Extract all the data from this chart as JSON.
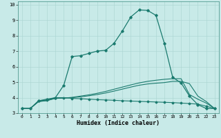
{
  "xlabel": "Humidex (Indice chaleur)",
  "xlim": [
    -0.5,
    23.5
  ],
  "ylim": [
    3,
    10.2
  ],
  "xticks": [
    0,
    1,
    2,
    3,
    4,
    5,
    6,
    7,
    8,
    9,
    10,
    11,
    12,
    13,
    14,
    15,
    16,
    17,
    18,
    19,
    20,
    21,
    22,
    23
  ],
  "yticks": [
    3,
    4,
    5,
    6,
    7,
    8,
    9,
    10
  ],
  "background_color": "#c8eae8",
  "grid_color": "#a8d4d0",
  "line_color": "#1a7a6e",
  "line1_x": [
    0,
    1,
    2,
    3,
    4,
    5,
    6,
    7,
    8,
    9,
    10,
    11,
    12,
    13,
    14,
    15,
    16,
    17,
    18,
    19,
    20,
    21,
    22,
    23
  ],
  "line1_y": [
    3.3,
    3.3,
    3.8,
    3.9,
    4.0,
    4.8,
    6.65,
    6.7,
    6.85,
    7.0,
    7.05,
    7.5,
    8.3,
    9.2,
    9.65,
    9.62,
    9.3,
    7.5,
    5.3,
    4.95,
    4.1,
    3.55,
    3.3,
    3.3
  ],
  "line2_x": [
    0,
    1,
    2,
    3,
    4,
    5,
    6,
    7,
    8,
    9,
    10,
    11,
    12,
    13,
    14,
    15,
    16,
    17,
    18,
    19,
    20,
    21,
    22,
    23
  ],
  "line2_y": [
    3.3,
    3.3,
    3.8,
    3.85,
    4.0,
    4.0,
    3.95,
    3.93,
    3.9,
    3.87,
    3.85,
    3.83,
    3.8,
    3.78,
    3.76,
    3.74,
    3.72,
    3.7,
    3.68,
    3.65,
    3.62,
    3.58,
    3.45,
    3.3
  ],
  "line3_x": [
    0,
    1,
    2,
    3,
    4,
    5,
    6,
    7,
    8,
    9,
    10,
    11,
    12,
    13,
    14,
    15,
    16,
    17,
    18,
    19,
    20,
    21,
    22,
    23
  ],
  "line3_y": [
    3.3,
    3.3,
    3.75,
    3.82,
    3.95,
    3.97,
    4.0,
    4.05,
    4.12,
    4.2,
    4.3,
    4.42,
    4.55,
    4.68,
    4.8,
    4.88,
    4.93,
    4.97,
    5.05,
    5.05,
    4.9,
    4.1,
    3.75,
    3.3
  ],
  "line4_x": [
    0,
    1,
    2,
    3,
    4,
    5,
    6,
    7,
    8,
    9,
    10,
    11,
    12,
    13,
    14,
    15,
    16,
    17,
    18,
    19,
    20,
    21,
    22,
    23
  ],
  "line4_y": [
    3.3,
    3.3,
    3.75,
    3.8,
    3.97,
    3.97,
    4.02,
    4.1,
    4.18,
    4.28,
    4.4,
    4.54,
    4.68,
    4.82,
    4.95,
    5.05,
    5.12,
    5.18,
    5.22,
    5.22,
    4.2,
    3.9,
    3.65,
    3.3
  ]
}
